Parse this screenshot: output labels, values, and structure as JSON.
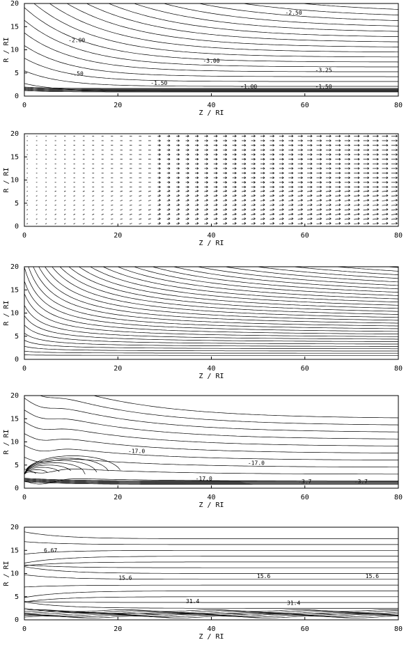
{
  "chart_data": [
    {
      "type": "contour",
      "x_label": "Z / RI",
      "y_label": "R / RI",
      "xlim": [
        0,
        80
      ],
      "ylim": [
        0,
        20
      ],
      "xticks": [
        0,
        20,
        40,
        60,
        80
      ],
      "yticks": [
        0,
        5,
        10,
        15,
        20
      ],
      "annotations": [
        "-2.50",
        "-2.00",
        "-3.00",
        "-3.25",
        "-.50",
        "-1.50",
        "-1.00",
        "-1.50"
      ]
    },
    {
      "type": "quiver",
      "x_label": "Z / RI",
      "y_label": "R / RI",
      "xlim": [
        0,
        80
      ],
      "ylim": [
        0,
        20
      ],
      "xticks": [
        0,
        20,
        40,
        60,
        80
      ],
      "yticks": [
        0,
        5,
        10,
        15,
        20
      ],
      "annotations": []
    },
    {
      "type": "fan",
      "x_label": "Z / RI",
      "y_label": "R / RI",
      "xlim": [
        0,
        80
      ],
      "ylim": [
        0,
        20
      ],
      "xticks": [
        0,
        20,
        40,
        60,
        80
      ],
      "yticks": [
        0,
        5,
        10,
        15,
        20
      ],
      "annotations": []
    },
    {
      "type": "contour",
      "x_label": "Z / RI",
      "y_label": "R / RI",
      "xlim": [
        0,
        80
      ],
      "ylim": [
        0,
        20
      ],
      "xticks": [
        0,
        20,
        40,
        60,
        80
      ],
      "yticks": [
        0,
        5,
        10,
        15,
        20
      ],
      "annotations": [
        "-17.0",
        "-17.0",
        "-17.0",
        "-3.7",
        "-3.7"
      ]
    },
    {
      "type": "contour",
      "x_label": "Z / RI",
      "y_label": "R / RI",
      "xlim": [
        0,
        80
      ],
      "ylim": [
        0,
        20
      ],
      "xticks": [
        0,
        20,
        40,
        60,
        80
      ],
      "yticks": [
        0,
        5,
        10,
        15,
        20
      ],
      "annotations": [
        "6.67",
        "15.6",
        "15.6",
        "15.6",
        "31.4",
        "31.4"
      ]
    }
  ]
}
